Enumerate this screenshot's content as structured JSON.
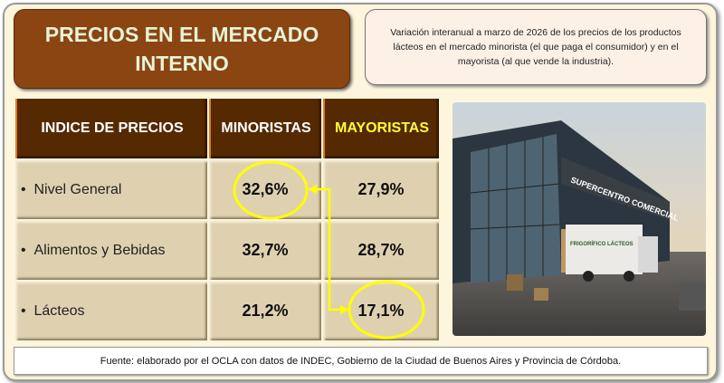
{
  "title": "PRECIOS EN EL MERCADO INTERNO",
  "description": "Variación interanual a marzo de 2026 de los precios de los productos lácteos en el mercado minorista (el que paga el consumidor) y en el mayorista (al que vende la industria).",
  "table": {
    "headers": [
      "INDICE DE PRECIOS",
      "MINORISTAS",
      "MAYORISTAS"
    ],
    "rows": [
      {
        "label": "Nivel General",
        "minoristas": "32,6%",
        "mayoristas": "27,9%"
      },
      {
        "label": "Alimentos y Bebidas",
        "minoristas": "32,7%",
        "mayoristas": "28,7%"
      },
      {
        "label": "Lácteos",
        "minoristas": "21,2%",
        "mayoristas": "17,1%"
      }
    ]
  },
  "photo": {
    "sign": "SUPERCENTRO COMERCIAL",
    "truck": "FRIGORÍFICO LÁCTEOS"
  },
  "footer": "Fuente: elaborado por el OCLA con datos de INDEC, Gobierno de la Ciudad de Buenos Aires y Provincia de Córdoba.",
  "colors": {
    "title_bg": "#8b4513",
    "header_bg": "#552a03",
    "highlight": "#ffff00",
    "cell_bg": "#dfd1b0"
  }
}
